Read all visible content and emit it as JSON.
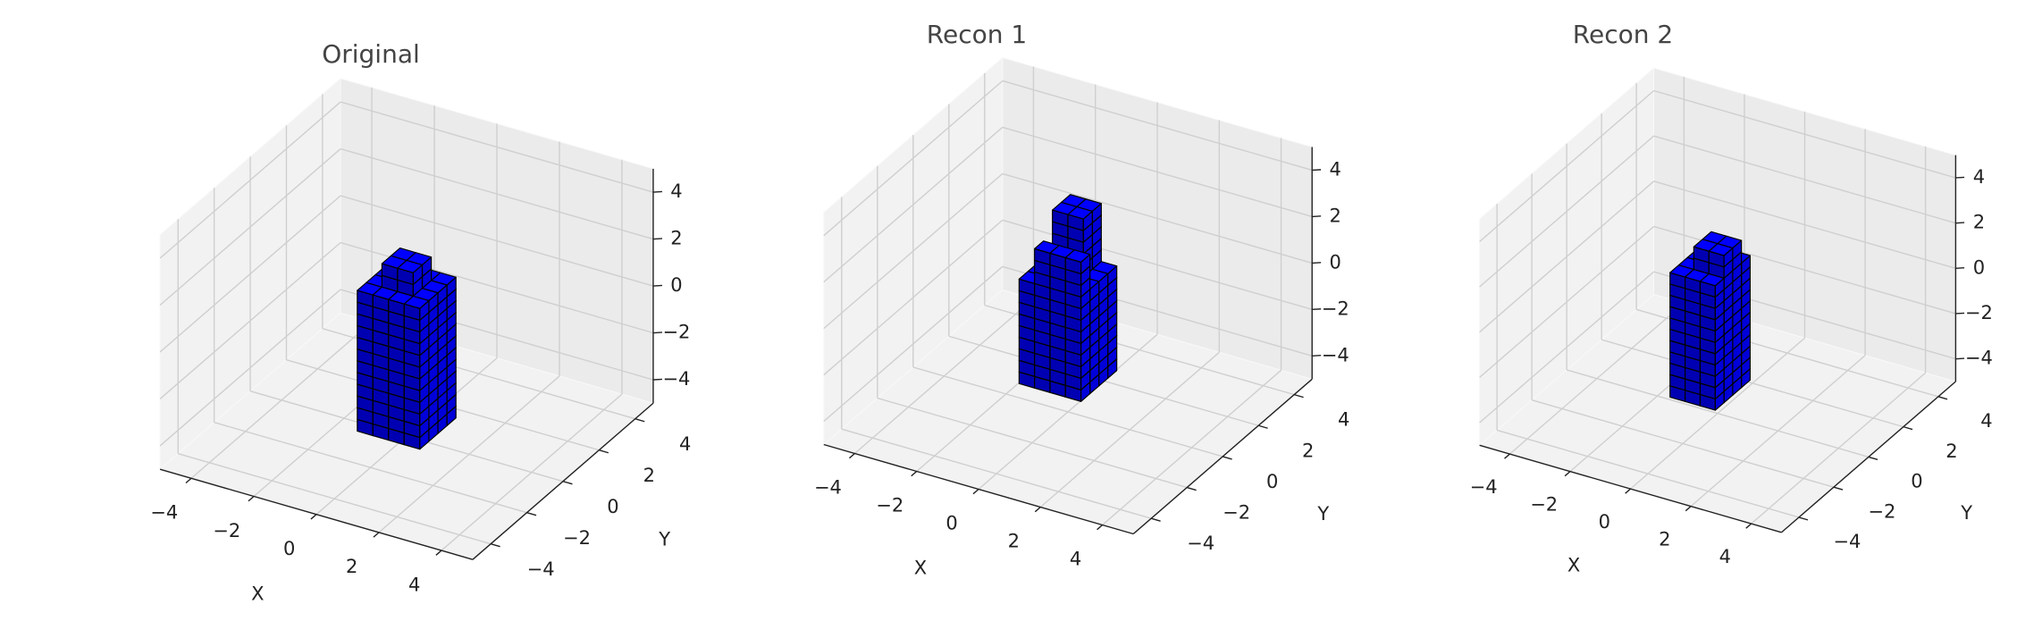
{
  "chart_data": [
    {
      "type": "voxel",
      "title": "Original",
      "xlabel": "X",
      "ylabel": "Y",
      "xlim": [
        -5,
        5
      ],
      "ylim": [
        -5,
        5
      ],
      "zlim": [
        -5,
        5
      ],
      "xticks": [
        {
          "value": -4,
          "label": "−4"
        },
        {
          "value": -2,
          "label": "−2"
        },
        0,
        2,
        4
      ],
      "yticks": [
        {
          "value": -4,
          "label": "−4"
        },
        {
          "value": -2,
          "label": "−2"
        },
        0,
        2,
        4
      ],
      "zticks": [
        {
          "value": -4,
          "label": "−4"
        },
        {
          "value": -2,
          "label": "−2"
        },
        0,
        2,
        4
      ],
      "voxel_size": 0.5,
      "color": "#0000ff",
      "edgecolor": "#000000",
      "voxels": [
        {
          "x": [
            -1,
            1
          ],
          "y": [
            -1,
            1
          ],
          "z": [
            -4.5,
            1.5
          ]
        },
        {
          "x": [
            -0.5,
            0.5
          ],
          "y": [
            -0.5,
            0.5
          ],
          "z": [
            1.5,
            2.5
          ]
        }
      ]
    },
    {
      "type": "voxel",
      "title": "Recon 1",
      "xlabel": "X",
      "ylabel": "Y",
      "xlim": [
        -5,
        5
      ],
      "ylim": [
        -5,
        5
      ],
      "zlim": [
        -5,
        5
      ],
      "xticks": [
        {
          "value": -4,
          "label": "−4"
        },
        {
          "value": -2,
          "label": "−2"
        },
        0,
        2,
        4
      ],
      "yticks": [
        {
          "value": -4,
          "label": "−4"
        },
        {
          "value": -2,
          "label": "−2"
        },
        0,
        2,
        4
      ],
      "zticks": [
        {
          "value": -4,
          "label": "−4"
        },
        {
          "value": -2,
          "label": "−2"
        },
        0,
        2,
        4
      ],
      "voxel_size": 0.5,
      "color": "#0000ff",
      "edgecolor": "#000000",
      "voxels": [
        {
          "x": [
            -1,
            1
          ],
          "y": [
            -1,
            1
          ],
          "z": [
            -3.5,
            1
          ]
        },
        {
          "x": [
            -0.5,
            0.5
          ],
          "y": [
            0,
            1
          ],
          "z": [
            1,
            3.5
          ]
        },
        {
          "x": [
            -0.5,
            1
          ],
          "y": [
            -1,
            -0.5
          ],
          "z": [
            1,
            2.5
          ]
        }
      ]
    },
    {
      "type": "voxel",
      "title": "Recon 2",
      "xlabel": "X",
      "ylabel": "Y",
      "xlim": [
        -5,
        5
      ],
      "ylim": [
        -5,
        5
      ],
      "zlim": [
        -5,
        5
      ],
      "xticks": [
        {
          "value": -4,
          "label": "−4"
        },
        {
          "value": -2,
          "label": "−2"
        },
        0,
        2,
        4
      ],
      "yticks": [
        {
          "value": -4,
          "label": "−4"
        },
        {
          "value": -2,
          "label": "−2"
        },
        0,
        2,
        4
      ],
      "zticks": [
        {
          "value": -4,
          "label": "−4"
        },
        {
          "value": -2,
          "label": "−2"
        },
        0,
        2,
        4
      ],
      "voxel_size": 0.5,
      "color": "#0000ff",
      "edgecolor": "#000000",
      "voxels": [
        {
          "x": [
            -1,
            0.5
          ],
          "y": [
            -1,
            1
          ],
          "z": [
            -4,
            1.5
          ]
        },
        {
          "x": [
            -0.5,
            0.5
          ],
          "y": [
            -0.5,
            0.5
          ],
          "z": [
            1.5,
            2.5
          ]
        }
      ]
    }
  ]
}
